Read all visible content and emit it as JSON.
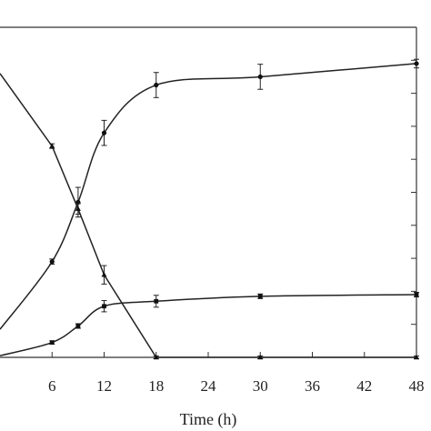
{
  "chart_data": {
    "type": "line",
    "title": "",
    "xlabel": "Time (h)",
    "ylabel": "",
    "xlim": [
      0,
      48
    ],
    "ylim": [
      0,
      100
    ],
    "xticks": [
      6,
      12,
      18,
      24,
      30,
      36,
      42,
      48
    ],
    "grid": false,
    "series": [
      {
        "marker": "circle",
        "x": [
          0,
          6,
          9,
          12,
          18,
          30,
          48
        ],
        "y": [
          8.5,
          29,
          47,
          68,
          82.5,
          85,
          89
        ],
        "yerr": [
          0,
          0.8,
          4.5,
          3.8,
          3.8,
          3.8,
          1.3
        ]
      },
      {
        "marker": "triangle",
        "x": [
          0,
          6,
          9,
          12,
          18,
          30,
          48
        ],
        "y": [
          86,
          64,
          45,
          25,
          0,
          0,
          0
        ],
        "yerr": [
          0,
          0.7,
          1.6,
          2.8,
          0.4,
          0.4,
          0.4
        ]
      },
      {
        "marker": "square",
        "x": [
          0,
          6,
          9,
          12,
          18,
          30,
          48
        ],
        "y": [
          0.5,
          4.5,
          9.5,
          15.5,
          17,
          18.5,
          19
        ],
        "yerr": [
          0,
          0.5,
          0.7,
          1.7,
          1.8,
          0.7,
          0.7
        ]
      }
    ]
  }
}
